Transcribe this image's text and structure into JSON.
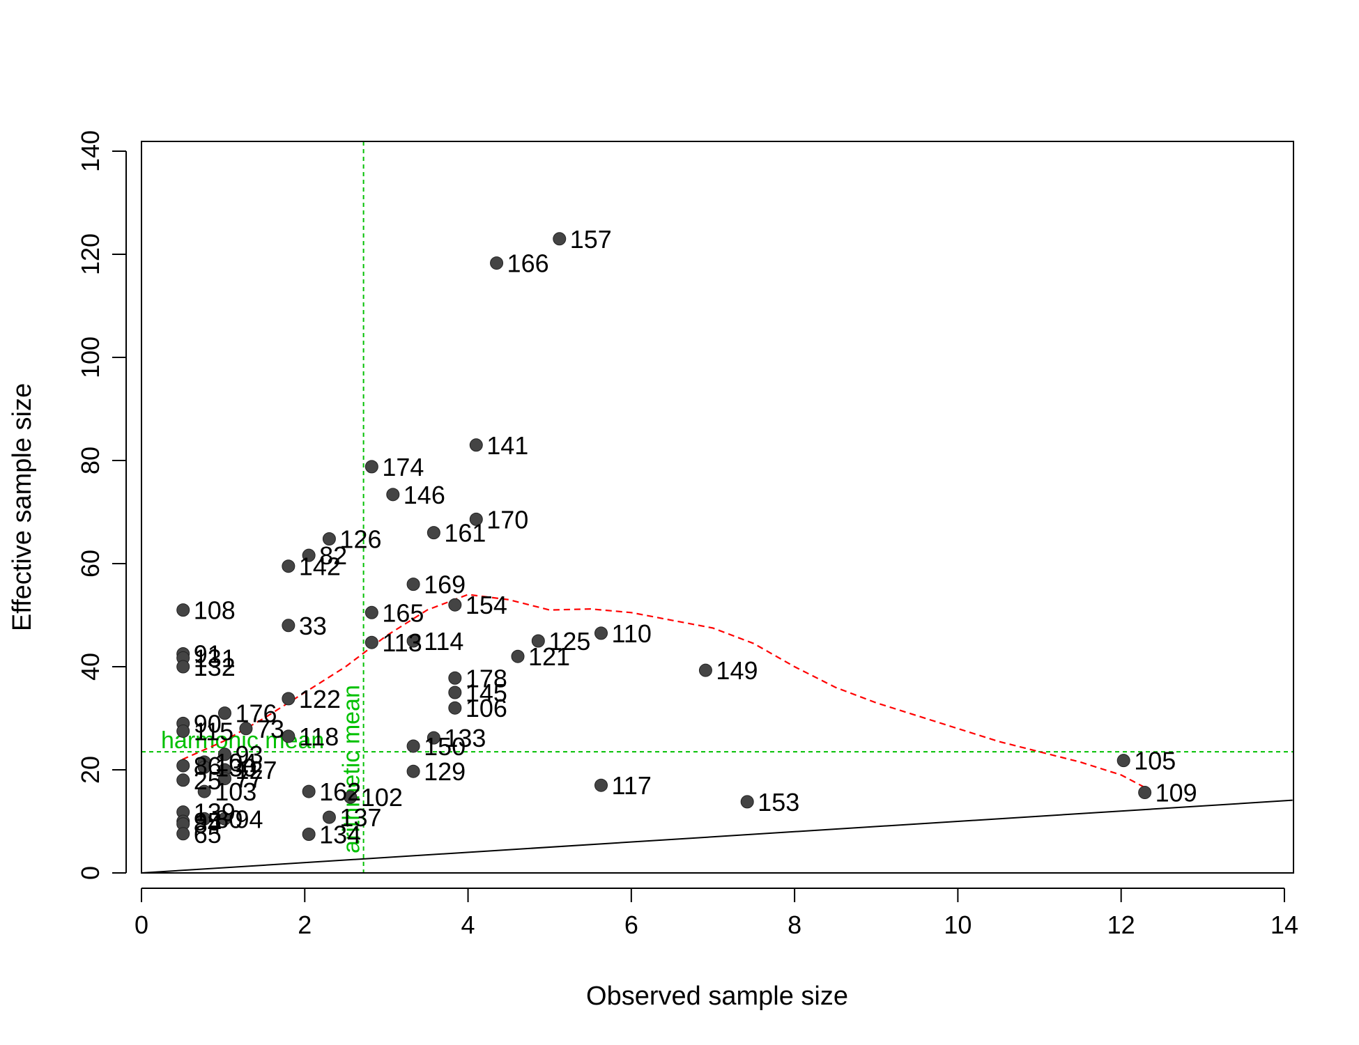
{
  "chart_data": {
    "type": "scatter",
    "xlabel": "Observed sample size",
    "ylabel": "Effective sample size",
    "xlim": [
      0,
      14.1
    ],
    "ylim": [
      0,
      140
    ],
    "xticks": [
      0,
      2,
      4,
      6,
      8,
      10,
      12,
      14
    ],
    "yticks": [
      0,
      20,
      40,
      60,
      80,
      100,
      120,
      140
    ],
    "grid": false,
    "colors": {
      "points": "#444444",
      "smooth_line": "#ff0000",
      "reference_lines": "#00c000",
      "identity_line": "#000000"
    },
    "reference_lines": {
      "harmonic_mean": {
        "label": "harmonic mean",
        "y": 23.5
      },
      "arithmetic_mean": {
        "label": "arithmetic mean",
        "x": 2.72
      }
    },
    "identity_line": {
      "from": [
        0,
        0
      ],
      "to": [
        14.1,
        14.1
      ]
    },
    "smooth_line": [
      [
        0.5,
        22.0
      ],
      [
        1.0,
        25.5
      ],
      [
        1.5,
        30.0
      ],
      [
        2.0,
        35.0
      ],
      [
        2.5,
        40.0
      ],
      [
        3.0,
        46.0
      ],
      [
        3.5,
        51.0
      ],
      [
        4.0,
        54.0
      ],
      [
        4.5,
        53.0
      ],
      [
        5.0,
        51.0
      ],
      [
        5.5,
        51.2
      ],
      [
        6.0,
        50.5
      ],
      [
        6.5,
        49.0
      ],
      [
        7.0,
        47.5
      ],
      [
        7.5,
        44.5
      ],
      [
        8.0,
        40.0
      ],
      [
        8.5,
        36.0
      ],
      [
        9.0,
        33.0
      ],
      [
        9.5,
        30.5
      ],
      [
        10.0,
        28.0
      ],
      [
        10.5,
        25.5
      ],
      [
        11.0,
        23.5
      ],
      [
        11.5,
        21.5
      ],
      [
        12.0,
        19.0
      ],
      [
        12.3,
        16.5
      ]
    ],
    "points": [
      {
        "label": "157",
        "x": 5.12,
        "y": 123.0
      },
      {
        "label": "166",
        "x": 4.35,
        "y": 118.3
      },
      {
        "label": "141",
        "x": 4.1,
        "y": 83.0
      },
      {
        "label": "174",
        "x": 2.82,
        "y": 78.8
      },
      {
        "label": "146",
        "x": 3.08,
        "y": 73.4
      },
      {
        "label": "170",
        "x": 4.1,
        "y": 68.6
      },
      {
        "label": "161",
        "x": 3.58,
        "y": 66.0
      },
      {
        "label": "126",
        "x": 2.3,
        "y": 64.8
      },
      {
        "label": "82",
        "x": 2.05,
        "y": 61.6
      },
      {
        "label": "142",
        "x": 1.8,
        "y": 59.5
      },
      {
        "label": "169",
        "x": 3.33,
        "y": 56.0
      },
      {
        "label": "154",
        "x": 3.84,
        "y": 52.0
      },
      {
        "label": "108",
        "x": 0.51,
        "y": 51.0
      },
      {
        "label": "165",
        "x": 2.82,
        "y": 50.5
      },
      {
        "label": "33",
        "x": 1.8,
        "y": 48.0
      },
      {
        "label": "110",
        "x": 5.63,
        "y": 46.5
      },
      {
        "label": "125",
        "x": 4.86,
        "y": 45.0
      },
      {
        "label": "114",
        "x": 3.33,
        "y": 45.0
      },
      {
        "label": "113",
        "x": 2.82,
        "y": 44.7
      },
      {
        "label": "91",
        "x": 0.51,
        "y": 42.5
      },
      {
        "label": "121",
        "x": 4.61,
        "y": 42.0
      },
      {
        "label": "131",
        "x": 0.51,
        "y": 41.7
      },
      {
        "label": "132",
        "x": 0.51,
        "y": 40.0
      },
      {
        "label": "149",
        "x": 6.91,
        "y": 39.3
      },
      {
        "label": "178",
        "x": 3.84,
        "y": 37.8
      },
      {
        "label": "145",
        "x": 3.84,
        "y": 35.0
      },
      {
        "label": "122",
        "x": 1.8,
        "y": 33.8
      },
      {
        "label": "106",
        "x": 3.84,
        "y": 32.0
      },
      {
        "label": "176",
        "x": 1.02,
        "y": 31.0
      },
      {
        "label": "90",
        "x": 0.51,
        "y": 29.0
      },
      {
        "label": "73",
        "x": 1.28,
        "y": 28.0
      },
      {
        "label": "115",
        "x": 0.51,
        "y": 27.5
      },
      {
        "label": "118",
        "x": 1.8,
        "y": 26.5
      },
      {
        "label": "133",
        "x": 3.58,
        "y": 26.2
      },
      {
        "label": "150",
        "x": 3.33,
        "y": 24.6
      },
      {
        "label": "93",
        "x": 1.02,
        "y": 23.0
      },
      {
        "label": "105",
        "x": 12.03,
        "y": 21.8
      },
      {
        "label": "104",
        "x": 0.77,
        "y": 21.5
      },
      {
        "label": "86",
        "x": 0.51,
        "y": 20.8
      },
      {
        "label": "130",
        "x": 0.77,
        "y": 20.5
      },
      {
        "label": "127",
        "x": 1.02,
        "y": 20.0
      },
      {
        "label": "129",
        "x": 3.33,
        "y": 19.7
      },
      {
        "label": "77",
        "x": 1.02,
        "y": 18.3
      },
      {
        "label": "25",
        "x": 0.51,
        "y": 18.0
      },
      {
        "label": "117",
        "x": 5.63,
        "y": 17.0
      },
      {
        "label": "109",
        "x": 12.29,
        "y": 15.6
      },
      {
        "label": "103",
        "x": 0.77,
        "y": 15.8
      },
      {
        "label": "162",
        "x": 2.05,
        "y": 15.8
      },
      {
        "label": "102",
        "x": 2.56,
        "y": 14.7
      },
      {
        "label": "153",
        "x": 7.42,
        "y": 13.8
      },
      {
        "label": "139",
        "x": 0.51,
        "y": 11.8
      },
      {
        "label": "137",
        "x": 2.3,
        "y": 10.8
      },
      {
        "label": "94",
        "x": 1.02,
        "y": 10.5
      },
      {
        "label": "80",
        "x": 0.77,
        "y": 10.5
      },
      {
        "label": "95",
        "x": 0.51,
        "y": 10.0
      },
      {
        "label": "84",
        "x": 0.51,
        "y": 9.5
      },
      {
        "label": "134",
        "x": 2.05,
        "y": 7.5
      },
      {
        "label": "65",
        "x": 0.51,
        "y": 7.6
      }
    ]
  }
}
